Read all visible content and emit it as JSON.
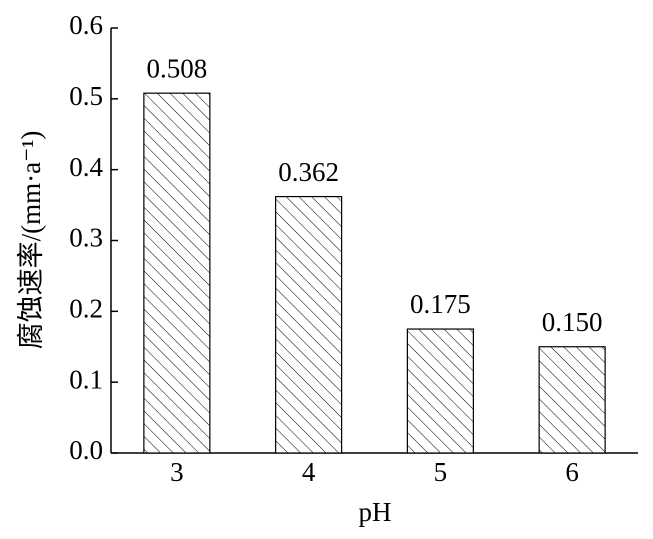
{
  "chart_data": {
    "type": "bar",
    "ylabel": "腐蚀速率/(mm·a⁻¹)",
    "xlabel": "pH",
    "categories": [
      "3",
      "4",
      "5",
      "6"
    ],
    "values": [
      0.508,
      0.362,
      0.175,
      0.15
    ],
    "value_labels": [
      "0.508",
      "0.362",
      "0.175",
      "0.150"
    ],
    "color": "#000000",
    "ylim": [
      0,
      0.6
    ],
    "yticks": [
      {
        "value": 0,
        "label": "0.0"
      },
      0.1,
      0.2,
      0.3,
      0.4,
      0.5,
      0.6
    ]
  }
}
